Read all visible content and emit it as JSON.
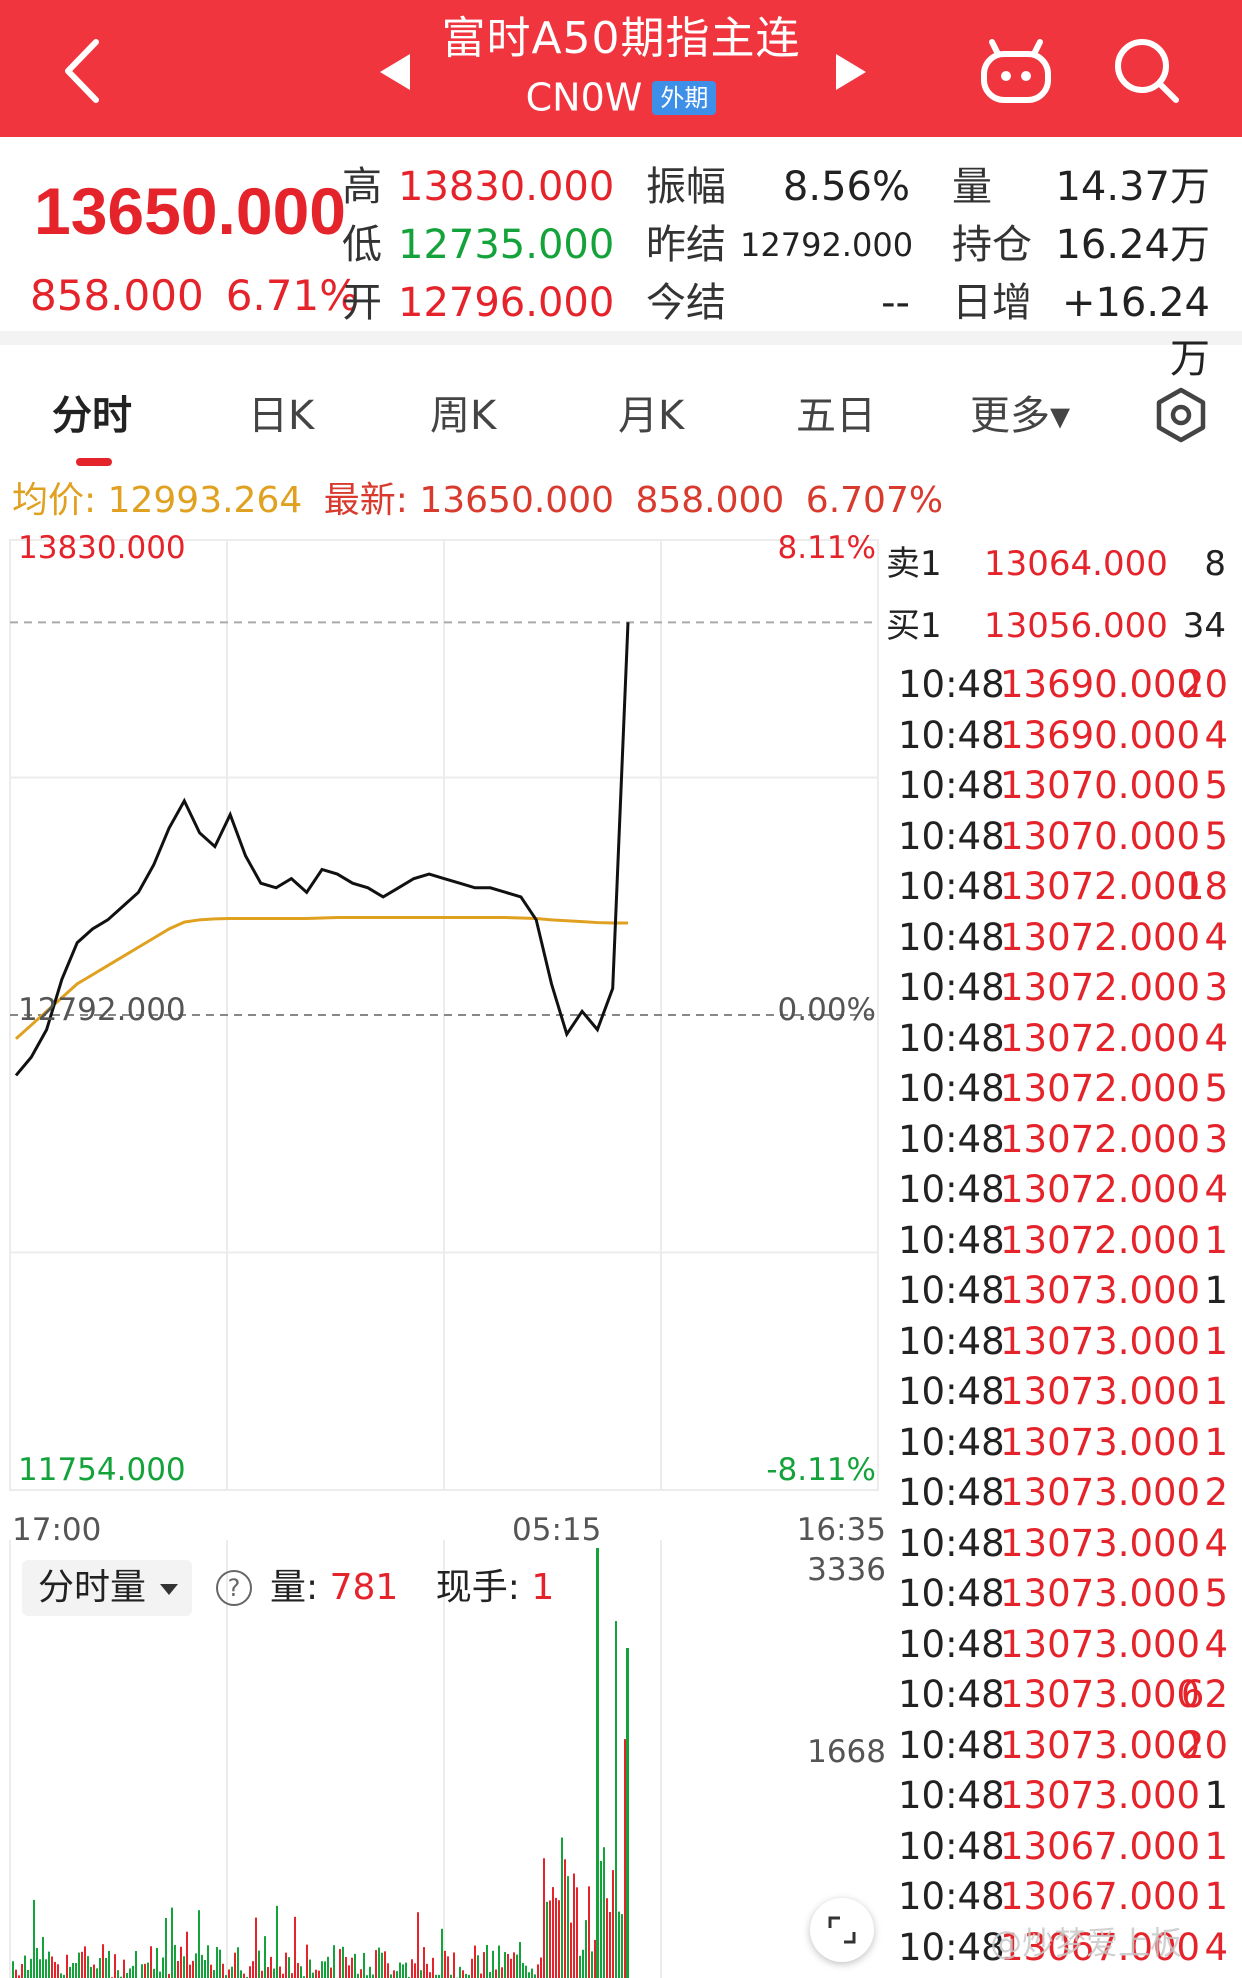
{
  "header": {
    "title": "富时A50期指主连",
    "code": "CN0W",
    "badge": "外期",
    "icons": {
      "back": "back-chevron-icon",
      "prev": "prev-arrow-icon",
      "next": "next-arrow-icon",
      "robot": "robot-icon",
      "search": "search-icon"
    }
  },
  "quote": {
    "price": "13650.000",
    "change": "858.000",
    "change_pct": "6.71%",
    "high_label": "高",
    "high": "13830.000",
    "low_label": "低",
    "low": "12735.000",
    "open_label": "开",
    "open": "12796.000",
    "amp_label": "振幅",
    "amp": "8.56%",
    "prev_label": "昨结",
    "prev": "12792.000",
    "settle_label": "今结",
    "settle": "--",
    "vol_label": "量",
    "vol": "14.37万",
    "oi_label": "持仓",
    "oi": "16.24万",
    "daily_label": "日增",
    "daily": "+16.24万"
  },
  "tabs": [
    {
      "label": "分时",
      "active": true
    },
    {
      "label": "日K",
      "active": false
    },
    {
      "label": "周K",
      "active": false
    },
    {
      "label": "月K",
      "active": false
    },
    {
      "label": "五日",
      "active": false
    },
    {
      "label": "更多▾",
      "active": false
    }
  ],
  "info_line": {
    "avg_label": "均价:",
    "avg": "12993.264",
    "latest_label": "最新:",
    "latest": "13650.000",
    "chg": "858.000",
    "chg_pct": "6.707%"
  },
  "chart_data": {
    "type": "line",
    "y_top_label": "13830.000",
    "y_mid_label": "12792.000",
    "y_bot_label": "11754.000",
    "pct_top": "8.11%",
    "pct_mid": "0.00%",
    "pct_bot": "-8.11%",
    "ylim": [
      11754,
      13830
    ],
    "x_labels": [
      "17:00",
      "05:15",
      "16:35"
    ],
    "reference_price": 12792,
    "high_price": 13650,
    "price_series": [
      12660,
      12700,
      12760,
      12870,
      12950,
      12980,
      13000,
      13030,
      13060,
      13120,
      13200,
      13260,
      13190,
      13160,
      13230,
      13140,
      13080,
      13070,
      13090,
      13060,
      13110,
      13100,
      13080,
      13070,
      13050,
      13070,
      13090,
      13100,
      13090,
      13080,
      13070,
      13070,
      13060,
      13050,
      13000,
      12860,
      12750,
      12800,
      12760,
      12850,
      13650
    ],
    "avg_series": [
      12740,
      12770,
      12800,
      12830,
      12860,
      12880,
      12900,
      12920,
      12940,
      12960,
      12980,
      12995,
      13000,
      13002,
      13003,
      13003,
      13003,
      13003,
      13003,
      13003,
      13004,
      13005,
      13005,
      13005,
      13005,
      13005,
      13005,
      13005,
      13005,
      13005,
      13005,
      13005,
      13005,
      13004,
      13003,
      13000,
      12998,
      12996,
      12994,
      12993,
      12993
    ],
    "volume": {
      "label": "分时量",
      "vol_label": "量:",
      "vol_value": "781",
      "hand_label": "现手:",
      "hand_value": "1",
      "y_labels": [
        "3336",
        "1668"
      ],
      "ylim": [
        0,
        3336
      ]
    }
  },
  "orderbook": {
    "sell": {
      "label": "卖1",
      "price": "13064.000",
      "qty": "8"
    },
    "buy": {
      "label": "买1",
      "price": "13056.000",
      "qty": "34"
    }
  },
  "trades": [
    {
      "time": "10:48",
      "price": "13690.000",
      "qty": "20",
      "color": "red"
    },
    {
      "time": "10:48",
      "price": "13690.000",
      "qty": "4",
      "color": "red"
    },
    {
      "time": "10:48",
      "price": "13070.000",
      "qty": "5",
      "color": "red"
    },
    {
      "time": "10:48",
      "price": "13070.000",
      "qty": "5",
      "color": "red"
    },
    {
      "time": "10:48",
      "price": "13072.000",
      "qty": "18",
      "color": "red"
    },
    {
      "time": "10:48",
      "price": "13072.000",
      "qty": "4",
      "color": "red"
    },
    {
      "time": "10:48",
      "price": "13072.000",
      "qty": "3",
      "color": "red"
    },
    {
      "time": "10:48",
      "price": "13072.000",
      "qty": "4",
      "color": "red"
    },
    {
      "time": "10:48",
      "price": "13072.000",
      "qty": "5",
      "color": "red"
    },
    {
      "time": "10:48",
      "price": "13072.000",
      "qty": "3",
      "color": "red"
    },
    {
      "time": "10:48",
      "price": "13072.000",
      "qty": "4",
      "color": "red"
    },
    {
      "time": "10:48",
      "price": "13072.000",
      "qty": "1",
      "color": "red"
    },
    {
      "time": "10:48",
      "price": "13073.000",
      "qty": "1",
      "color": "dark"
    },
    {
      "time": "10:48",
      "price": "13073.000",
      "qty": "1",
      "color": "red"
    },
    {
      "time": "10:48",
      "price": "13073.000",
      "qty": "1",
      "color": "red"
    },
    {
      "time": "10:48",
      "price": "13073.000",
      "qty": "1",
      "color": "red"
    },
    {
      "time": "10:48",
      "price": "13073.000",
      "qty": "2",
      "color": "red"
    },
    {
      "time": "10:48",
      "price": "13073.000",
      "qty": "4",
      "color": "red"
    },
    {
      "time": "10:48",
      "price": "13073.000",
      "qty": "5",
      "color": "red"
    },
    {
      "time": "10:48",
      "price": "13073.000",
      "qty": "4",
      "color": "red"
    },
    {
      "time": "10:48",
      "price": "13073.000",
      "qty": "62",
      "color": "red"
    },
    {
      "time": "10:48",
      "price": "13073.000",
      "qty": "20",
      "color": "red"
    },
    {
      "time": "10:48",
      "price": "13073.000",
      "qty": "1",
      "color": "dark"
    },
    {
      "time": "10:48",
      "price": "13067.000",
      "qty": "1",
      "color": "red"
    },
    {
      "time": "10:48",
      "price": "13067.000",
      "qty": "1",
      "color": "red"
    },
    {
      "time": "10:48",
      "price": "13067.000",
      "qty": "4",
      "color": "red"
    }
  ],
  "watermark": "@炒梦爱上板",
  "colors": {
    "header": "#f0353f",
    "up": "#e5232b",
    "down": "#14a33a",
    "avg": "#e0a020"
  }
}
